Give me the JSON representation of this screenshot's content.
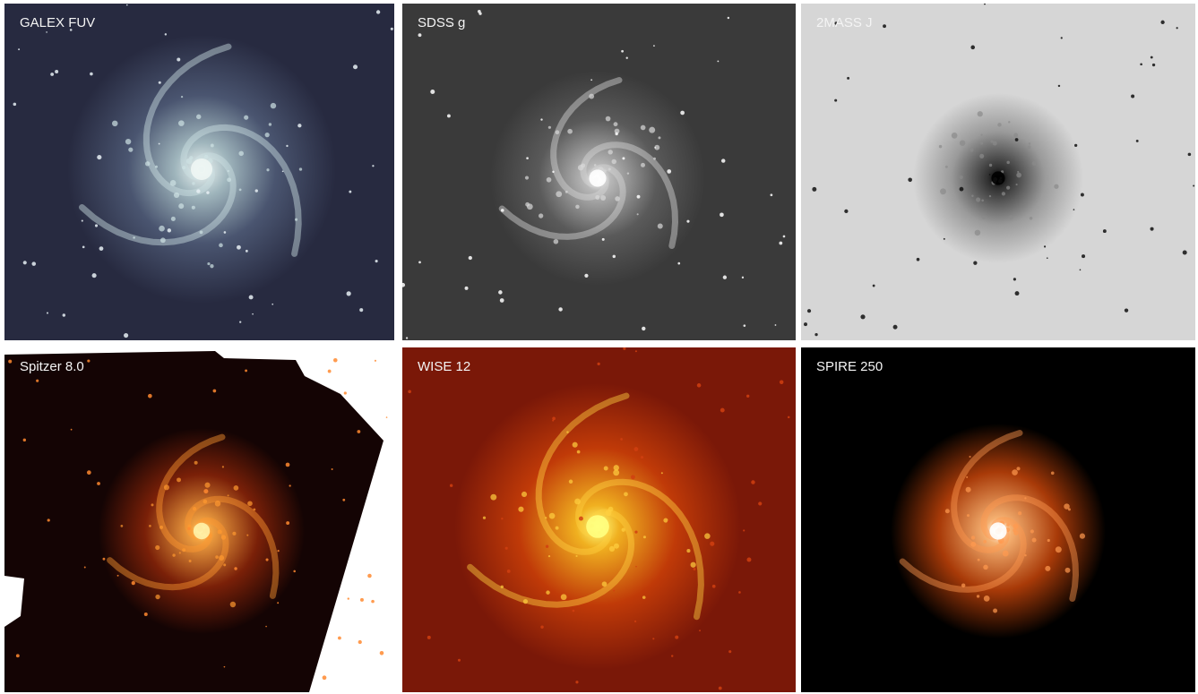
{
  "panels": [
    {
      "label": "GALEX FUV"
    },
    {
      "label": "SDSS g"
    },
    {
      "label": "2MASS J"
    },
    {
      "label": "Spitzer 8.0"
    },
    {
      "label": "WISE 12"
    },
    {
      "label": "SPIRE 250"
    }
  ]
}
